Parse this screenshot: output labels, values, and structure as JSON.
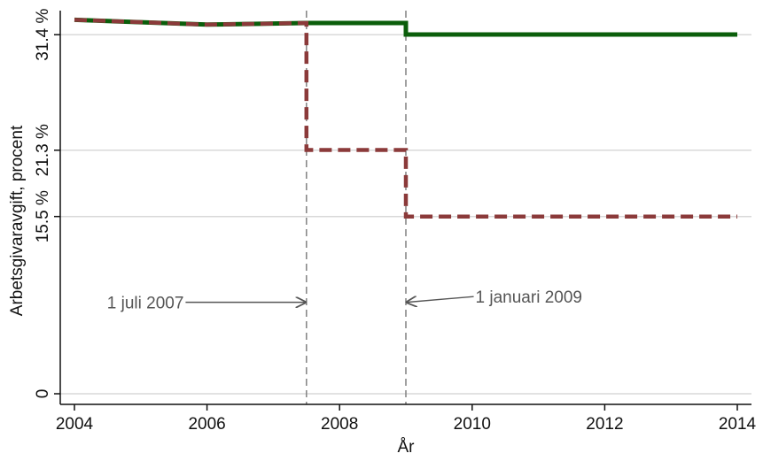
{
  "chart_data": {
    "type": "line",
    "title": "",
    "xlabel": "År",
    "ylabel": "Arbetsgivaravgift, procent",
    "xlim": [
      2004,
      2014
    ],
    "ylim": [
      0,
      32.5
    ],
    "x_ticks": [
      2004,
      2006,
      2008,
      2010,
      2012,
      2014
    ],
    "x_tick_labels": [
      "2004",
      "2006",
      "2008",
      "2010",
      "2012",
      "2014"
    ],
    "y_ticks": [
      0,
      15.5,
      21.3,
      31.4
    ],
    "y_tick_labels": [
      "0",
      "15.5 %",
      "21.3 %",
      "31.4 %"
    ],
    "grid": true,
    "legend": "none",
    "series": [
      {
        "color": "#0b5e0b",
        "style": "solid",
        "points": [
          [
            2004,
            32.7
          ],
          [
            2006,
            32.28
          ],
          [
            2007.5,
            32.42
          ],
          [
            2009,
            32.42
          ],
          [
            2009,
            31.42
          ],
          [
            2014,
            31.42
          ]
        ]
      },
      {
        "color": "#8b3a3a",
        "style": "dashed",
        "points": [
          [
            2004,
            32.7
          ],
          [
            2006,
            32.28
          ],
          [
            2007.5,
            32.42
          ],
          [
            2007.5,
            21.32
          ],
          [
            2009,
            21.32
          ],
          [
            2009,
            15.49
          ],
          [
            2014,
            15.49
          ]
        ]
      }
    ],
    "vlines": [
      2007.5,
      2009
    ],
    "annotations": [
      {
        "text": "1 juli 2007",
        "target_x": 2007.5,
        "target_y": 8,
        "text_x": 2005.65,
        "text_y": 8
      },
      {
        "text": "1 januari 2009",
        "target_x": 2009,
        "target_y": 8,
        "text_x": 2010.05,
        "text_y": 8.5
      }
    ]
  }
}
